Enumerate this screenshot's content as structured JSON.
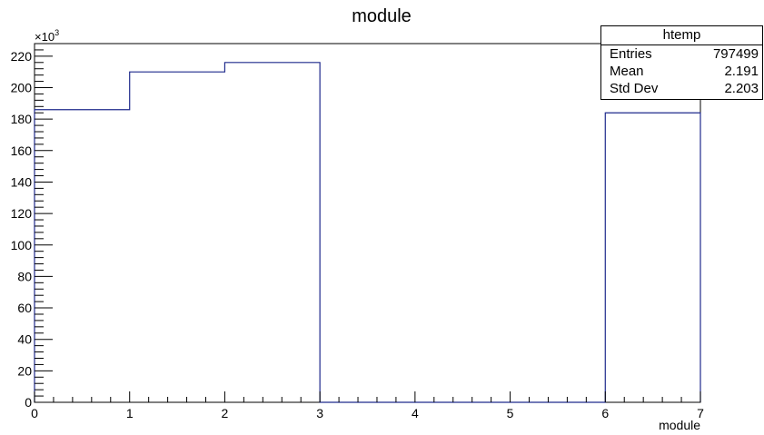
{
  "chart_data": {
    "type": "bar",
    "title": "module",
    "xlabel": "module",
    "ylabel": "",
    "y_multiplier_label": "×10",
    "y_multiplier_exponent": "3",
    "xlim": [
      0,
      7
    ],
    "ylim": [
      0,
      228
    ],
    "bin_edges": [
      0,
      1,
      2,
      3,
      4,
      5,
      6,
      7
    ],
    "values": [
      186,
      210,
      216,
      0,
      0,
      0,
      184
    ],
    "x_ticks": [
      "0",
      "1",
      "2",
      "3",
      "4",
      "5",
      "6",
      "7"
    ],
    "y_ticks": [
      "0",
      "20",
      "40",
      "60",
      "80",
      "100",
      "120",
      "140",
      "160",
      "180",
      "200",
      "220"
    ],
    "line_color": "#1f2a8c",
    "grid": false
  },
  "stats_box": {
    "name": "htemp",
    "rows": [
      {
        "key": "Entries",
        "value": "797499"
      },
      {
        "key": "Mean",
        "value": "2.191"
      },
      {
        "key": "Std Dev",
        "value": "2.203"
      }
    ]
  }
}
